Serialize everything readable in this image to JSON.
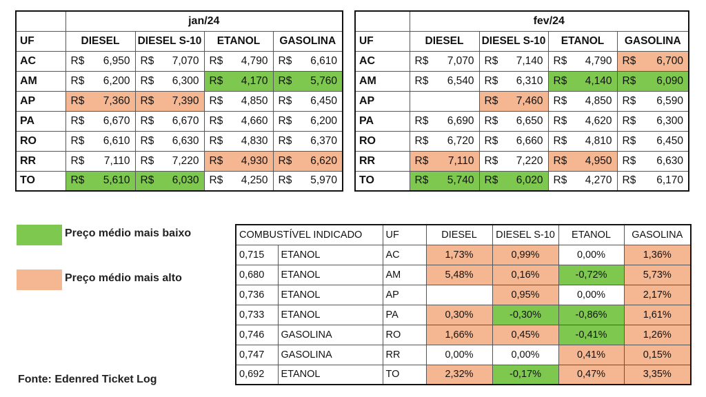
{
  "currency": "R$",
  "colors": {
    "highest": "#f5b792",
    "lowest": "#7ec850",
    "border": "#111111"
  },
  "headers": {
    "uf": "UF",
    "diesel": "DIESEL",
    "diesel_s10": "DIESEL S-10",
    "etanol": "ETANOL",
    "gasolina": "GASOLINA"
  },
  "jan": {
    "title": "jan/24",
    "rows": [
      {
        "uf": "AC",
        "diesel": "6,950",
        "diesel_s10": "7,070",
        "etanol": "4,790",
        "gasolina": "6,610"
      },
      {
        "uf": "AM",
        "diesel": "6,200",
        "diesel_s10": "6,300",
        "etanol": "4,170",
        "gasolina": "5,760"
      },
      {
        "uf": "AP",
        "diesel": "7,360",
        "diesel_s10": "7,390",
        "etanol": "4,850",
        "gasolina": "6,450"
      },
      {
        "uf": "PA",
        "diesel": "6,670",
        "diesel_s10": "6,670",
        "etanol": "4,660",
        "gasolina": "6,200"
      },
      {
        "uf": "RO",
        "diesel": "6,610",
        "diesel_s10": "6,630",
        "etanol": "4,830",
        "gasolina": "6,370"
      },
      {
        "uf": "RR",
        "diesel": "7,110",
        "diesel_s10": "7,220",
        "etanol": "4,930",
        "gasolina": "6,620"
      },
      {
        "uf": "TO",
        "diesel": "5,610",
        "diesel_s10": "6,030",
        "etanol": "4,250",
        "gasolina": "5,970"
      }
    ]
  },
  "fev": {
    "title": "fev/24",
    "rows": [
      {
        "uf": "AC",
        "diesel": "7,070",
        "diesel_s10": "7,140",
        "etanol": "4,790",
        "gasolina": "6,700"
      },
      {
        "uf": "AM",
        "diesel": "6,540",
        "diesel_s10": "6,310",
        "etanol": "4,140",
        "gasolina": "6,090"
      },
      {
        "uf": "AP",
        "diesel": "",
        "diesel_s10": "7,460",
        "etanol": "4,850",
        "gasolina": "6,590"
      },
      {
        "uf": "PA",
        "diesel": "6,690",
        "diesel_s10": "6,650",
        "etanol": "4,620",
        "gasolina": "6,300"
      },
      {
        "uf": "RO",
        "diesel": "6,720",
        "diesel_s10": "6,660",
        "etanol": "4,810",
        "gasolina": "6,450"
      },
      {
        "uf": "RR",
        "diesel": "7,110",
        "diesel_s10": "7,220",
        "etanol": "4,950",
        "gasolina": "6,630"
      },
      {
        "uf": "TO",
        "diesel": "5,740",
        "diesel_s10": "6,020",
        "etanol": "4,270",
        "gasolina": "6,170"
      }
    ]
  },
  "legend": {
    "low": "Preço médio mais baixo",
    "high": "Preço médio mais alto"
  },
  "source": "Fonte: Edenred Ticket Log",
  "comparison": {
    "headers": {
      "combustivel": "COMBUSTÍVEL INDICADO",
      "uf": "UF",
      "diesel": "DIESEL",
      "diesel_s10": "DIESEL S-10",
      "etanol": "ETANOL",
      "gasolina": "GASOLINA"
    },
    "rows": [
      {
        "ratio": "0,715",
        "fuel": "ETANOL",
        "uf": "AC",
        "diesel": "1,73%",
        "diesel_s10": "0,99%",
        "etanol": "0,00%",
        "gasolina": "1,36%"
      },
      {
        "ratio": "0,680",
        "fuel": "ETANOL",
        "uf": "AM",
        "diesel": "5,48%",
        "diesel_s10": "0,16%",
        "etanol": "-0,72%",
        "gasolina": "5,73%"
      },
      {
        "ratio": "0,736",
        "fuel": "ETANOL",
        "uf": "AP",
        "diesel": "",
        "diesel_s10": "0,95%",
        "etanol": "0,00%",
        "gasolina": "2,17%"
      },
      {
        "ratio": "0,733",
        "fuel": "ETANOL",
        "uf": "PA",
        "diesel": "0,30%",
        "diesel_s10": "-0,30%",
        "etanol": "-0,86%",
        "gasolina": "1,61%"
      },
      {
        "ratio": "0,746",
        "fuel": "GASOLINA",
        "uf": "RO",
        "diesel": "1,66%",
        "diesel_s10": "0,45%",
        "etanol": "-0,41%",
        "gasolina": "1,26%"
      },
      {
        "ratio": "0,747",
        "fuel": "GASOLINA",
        "uf": "RR",
        "diesel": "0,00%",
        "diesel_s10": "0,00%",
        "etanol": "0,41%",
        "gasolina": "0,15%"
      },
      {
        "ratio": "0,692",
        "fuel": "ETANOL",
        "uf": "TO",
        "diesel": "2,32%",
        "diesel_s10": "-0,17%",
        "etanol": "0,47%",
        "gasolina": "3,35%"
      }
    ]
  }
}
